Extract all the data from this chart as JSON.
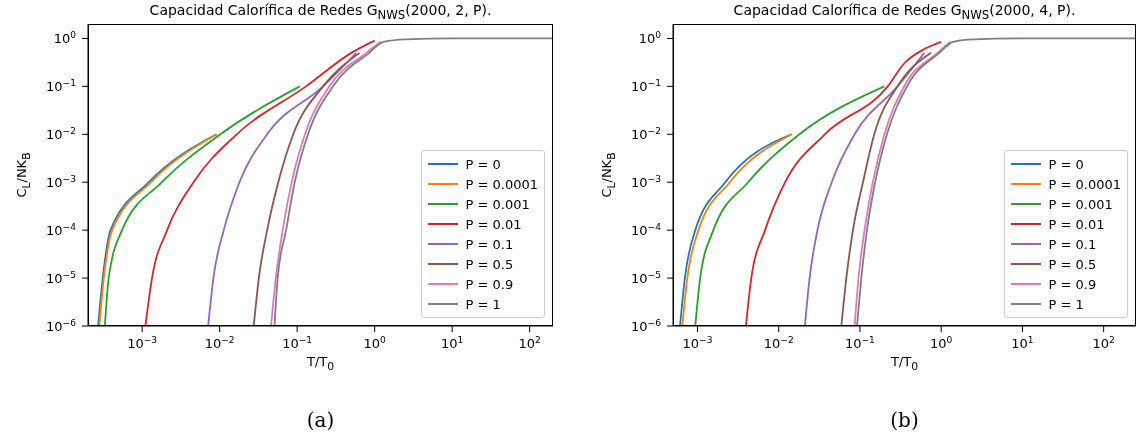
{
  "chart_data": [
    {
      "type": "line",
      "title": "Capacidad Calorífica de Redes G$_{NWS}$(2000, 2, P).",
      "xlabel": "T/T$_{0}$",
      "ylabel": "C$_{L}$/NK$_{B}$",
      "annotations": [
        "(a)"
      ],
      "log": "xy",
      "grid": false,
      "legend": "bottom right",
      "marker": "none",
      "line_style": "solid",
      "xlim": [
        0.0002,
        200
      ],
      "ylim": [
        1e-06,
        2
      ],
      "xticks": [
        {
          "value": 0.001,
          "label": "10$^{−3}$"
        },
        {
          "value": 0.01,
          "label": "10$^{−2}$"
        },
        {
          "value": 0.1,
          "label": "10$^{−1}$"
        },
        {
          "value": 1,
          "label": "10$^{0}$"
        },
        {
          "value": 10,
          "label": "10$^{1}$"
        },
        {
          "value": 100,
          "label": "10$^{2}$"
        }
      ],
      "yticks": [
        {
          "value": 1e-06,
          "label": "10$^{−6}$"
        },
        {
          "value": 1e-05,
          "label": "10$^{−5}$"
        },
        {
          "value": 0.0001,
          "label": "10$^{−4}$"
        },
        {
          "value": 0.001,
          "label": "10$^{−3}$"
        },
        {
          "value": 0.01,
          "label": "10$^{−2}$"
        },
        {
          "value": 0.1,
          "label": "10$^{−1}$"
        },
        {
          "value": 1,
          "label": "10$^{0}$"
        }
      ],
      "series": [
        {
          "name": "P = 0",
          "color": "#1f77b4",
          "x": [
            0.00027,
            0.00031,
            0.00039,
            0.00122,
            0.0091
          ],
          "values": [
            1e-06,
            1e-05,
            0.0001,
            0.001,
            0.01
          ]
        },
        {
          "name": "P = 0.0001",
          "color": "#ff7f0e",
          "x": [
            0.00028,
            0.00032,
            0.00041,
            0.0013,
            0.0092
          ],
          "values": [
            1e-06,
            1e-05,
            0.0001,
            0.001,
            0.01
          ]
        },
        {
          "name": "P = 0.001",
          "color": "#2ca02c",
          "x": [
            0.00033,
            0.00037,
            0.00055,
            0.0018,
            0.0102,
            0.108
          ],
          "values": [
            1e-06,
            1e-05,
            0.0001,
            0.001,
            0.01,
            0.1
          ]
        },
        {
          "name": "P = 0.01",
          "color": "#d62728",
          "x": [
            0.0011,
            0.00134,
            0.0021,
            0.0046,
            0.0166,
            0.13,
            0.5,
            1
          ],
          "values": [
            1e-06,
            1e-05,
            0.0001,
            0.001,
            0.01,
            0.1,
            0.5,
            0.9
          ]
        },
        {
          "name": "P = 0.1",
          "color": "#9467bd",
          "x": [
            0.0071,
            0.0083,
            0.0113,
            0.018,
            0.041,
            0.216,
            0.58
          ],
          "values": [
            1e-06,
            1e-05,
            0.0001,
            0.001,
            0.01,
            0.1,
            0.5
          ]
        },
        {
          "name": "P = 0.5",
          "color": "#8c564b",
          "x": [
            0.0275,
            0.032,
            0.041,
            0.057,
            0.089,
            0.216,
            0.64
          ],
          "values": [
            1e-06,
            1e-05,
            0.0001,
            0.001,
            0.01,
            0.1,
            0.5
          ]
        },
        {
          "name": "P = 0.9",
          "color": "#e377c2",
          "x": [
            0.046,
            0.053,
            0.065,
            0.085,
            0.126,
            0.26,
            0.78,
            1.2
          ],
          "values": [
            1e-06,
            1e-05,
            0.0001,
            0.001,
            0.01,
            0.1,
            0.5,
            0.85
          ]
        },
        {
          "name": "P = 1",
          "color": "#7f7f7f",
          "x": [
            0.051,
            0.056,
            0.072,
            0.093,
            0.138,
            0.29,
            0.85,
            1.3,
            2.5,
            10,
            200
          ],
          "values": [
            1e-06,
            1e-05,
            0.0001,
            0.001,
            0.01,
            0.1,
            0.5,
            0.85,
            0.96,
            1,
            1
          ]
        }
      ]
    },
    {
      "type": "line",
      "title": "Capacidad Calorífica de Redes G$_{NWS}$(2000, 4, P).",
      "xlabel": "T/T$_{0}$",
      "ylabel": "C$_{L}$/NK$_{B}$",
      "annotations": [
        "(b)"
      ],
      "log": "xy",
      "grid": false,
      "legend": "bottom right",
      "marker": "none",
      "line_style": "solid",
      "xlim": [
        0.0005,
        250
      ],
      "ylim": [
        1e-06,
        2
      ],
      "xticks": [
        {
          "value": 0.001,
          "label": "10$^{−3}$"
        },
        {
          "value": 0.01,
          "label": "10$^{−2}$"
        },
        {
          "value": 0.1,
          "label": "10$^{−1}$"
        },
        {
          "value": 1,
          "label": "10$^{0}$"
        },
        {
          "value": 10,
          "label": "10$^{1}$"
        },
        {
          "value": 100,
          "label": "10$^{2}$"
        }
      ],
      "yticks": [
        {
          "value": 1e-06,
          "label": "10$^{−6}$"
        },
        {
          "value": 1e-05,
          "label": "10$^{−5}$"
        },
        {
          "value": 0.0001,
          "label": "10$^{−4}$"
        },
        {
          "value": 0.001,
          "label": "10$^{−3}$"
        },
        {
          "value": 0.01,
          "label": "10$^{−2}$"
        },
        {
          "value": 0.1,
          "label": "10$^{−1}$"
        },
        {
          "value": 1,
          "label": "10$^{0}$"
        }
      ],
      "series": [
        {
          "name": "P = 0",
          "color": "#1f77b4",
          "x": [
            0.00061,
            0.0007,
            0.00094,
            0.0022,
            0.0144
          ],
          "values": [
            1e-06,
            1e-05,
            0.0001,
            0.001,
            0.01
          ]
        },
        {
          "name": "P = 0.0001",
          "color": "#ff7f0e",
          "x": [
            0.00065,
            0.00075,
            0.00103,
            0.0025,
            0.0146
          ],
          "values": [
            1e-06,
            1e-05,
            0.0001,
            0.001,
            0.01
          ]
        },
        {
          "name": "P = 0.001",
          "color": "#2ca02c",
          "x": [
            0.00094,
            0.00108,
            0.00157,
            0.0042,
            0.018,
            0.2
          ],
          "values": [
            1e-06,
            1e-05,
            0.0001,
            0.001,
            0.01,
            0.1
          ]
        },
        {
          "name": "P = 0.01",
          "color": "#d62728",
          "x": [
            0.00395,
            0.0046,
            0.0068,
            0.012,
            0.037,
            0.22,
            0.35,
            0.62,
            1
          ],
          "values": [
            1e-06,
            1e-05,
            0.0001,
            0.001,
            0.01,
            0.1,
            0.3,
            0.6,
            0.85
          ]
        },
        {
          "name": "P = 0.1",
          "color": "#9467bd",
          "x": [
            0.021,
            0.024,
            0.03,
            0.045,
            0.086,
            0.29,
            0.62
          ],
          "values": [
            1e-06,
            1e-05,
            0.0001,
            0.001,
            0.01,
            0.1,
            0.5
          ]
        },
        {
          "name": "P = 0.5",
          "color": "#8c564b",
          "x": [
            0.059,
            0.068,
            0.082,
            0.109,
            0.15,
            0.29,
            0.75
          ],
          "values": [
            1e-06,
            1e-05,
            0.0001,
            0.001,
            0.01,
            0.1,
            0.5
          ]
        },
        {
          "name": "P = 0.9",
          "color": "#e377c2",
          "x": [
            0.086,
            0.096,
            0.114,
            0.144,
            0.2,
            0.35,
            0.9,
            1.3
          ],
          "values": [
            1e-06,
            1e-05,
            0.0001,
            0.001,
            0.01,
            0.1,
            0.5,
            0.85
          ]
        },
        {
          "name": "P = 1",
          "color": "#7f7f7f",
          "x": [
            0.092,
            0.104,
            0.122,
            0.154,
            0.215,
            0.38,
            0.95,
            1.4,
            2.5,
            10,
            250
          ],
          "values": [
            1e-06,
            1e-05,
            0.0001,
            0.001,
            0.01,
            0.1,
            0.5,
            0.85,
            0.96,
            1,
            1
          ]
        }
      ]
    }
  ]
}
